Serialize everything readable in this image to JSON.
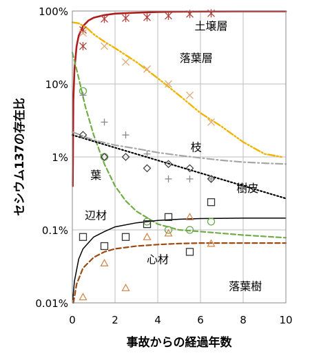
{
  "chart_data": {
    "type": "scatter",
    "title": "",
    "xlabel": "事故からの経過年数",
    "ylabel": "セシウム137の存在比",
    "x_ticks": [
      "0",
      "2",
      "4",
      "6",
      "8",
      "10"
    ],
    "y_ticks": [
      "0.01%",
      "0.1%",
      "1%",
      "10%",
      "100%"
    ],
    "xlim": [
      0,
      10
    ],
    "ylim_percent": [
      0.01,
      100
    ],
    "y_scale": "log",
    "grid": true,
    "annotations": [
      {
        "label": "土壌層",
        "x": 6.5,
        "y": 55
      },
      {
        "label": "落葉層",
        "x": 5.8,
        "y": 20
      },
      {
        "label": "枝",
        "x": 5.8,
        "y": 1.2
      },
      {
        "label": "葉",
        "x": 1.1,
        "y": 0.5
      },
      {
        "label": "樹皮",
        "x": 8.2,
        "y": 0.33
      },
      {
        "label": "辺材",
        "x": 1.1,
        "y": 0.14
      },
      {
        "label": "心材",
        "x": 4.0,
        "y": 0.035
      },
      {
        "label": "落葉樹",
        "x": 8.1,
        "y": 0.015
      }
    ],
    "series": [
      {
        "component": "soil",
        "marker": "asterisk",
        "color": "#b0403c",
        "line_style": "solid",
        "points": [
          [
            0.5,
            33
          ],
          [
            0.5,
            55
          ],
          [
            1.5,
            78
          ],
          [
            2.5,
            80
          ],
          [
            3.5,
            82
          ],
          [
            4.5,
            86
          ],
          [
            5.5,
            91
          ],
          [
            6.5,
            93
          ]
        ],
        "fit": [
          [
            0.02,
            0.4
          ],
          [
            0.05,
            6
          ],
          [
            0.1,
            16
          ],
          [
            0.2,
            33
          ],
          [
            0.3,
            46
          ],
          [
            0.5,
            62
          ],
          [
            0.75,
            74
          ],
          [
            1,
            81
          ],
          [
            1.5,
            88
          ],
          [
            2,
            92
          ],
          [
            3,
            95
          ],
          [
            4,
            97
          ],
          [
            5,
            98
          ],
          [
            6,
            98.5
          ],
          [
            8,
            99
          ],
          [
            10,
            99
          ]
        ]
      },
      {
        "component": "litter",
        "marker": "x",
        "color": "#e0a878",
        "line_style": "dash-dot-dot",
        "points": [
          [
            0.5,
            50
          ],
          [
            1.5,
            33
          ],
          [
            2.5,
            20
          ],
          [
            3.5,
            16
          ],
          [
            4.5,
            10
          ],
          [
            5.5,
            7
          ],
          [
            6.5,
            3
          ]
        ],
        "fit": [
          [
            0,
            70
          ],
          [
            0.3,
            68
          ],
          [
            0.7,
            58
          ],
          [
            1,
            48
          ],
          [
            1.5,
            38
          ],
          [
            2,
            31
          ],
          [
            3,
            20
          ],
          [
            4,
            12
          ],
          [
            5,
            7
          ],
          [
            6,
            4
          ],
          [
            7,
            2.6
          ],
          [
            8,
            1.6
          ],
          [
            9,
            1.1
          ],
          [
            9.8,
            1.0
          ]
        ]
      },
      {
        "component": "leaf",
        "marker": "circle",
        "color": "#6aa84f",
        "line_style": "dashed",
        "points": [
          [
            0.5,
            8
          ],
          [
            1.5,
            1.0
          ],
          [
            3.5,
            0.13
          ],
          [
            4.5,
            0.1
          ],
          [
            5.5,
            0.1
          ],
          [
            6.5,
            0.13
          ]
        ],
        "fit": [
          [
            0,
            27
          ],
          [
            0.3,
            12
          ],
          [
            0.6,
            5
          ],
          [
            1,
            2
          ],
          [
            1.5,
            0.8
          ],
          [
            2,
            0.4
          ],
          [
            2.5,
            0.25
          ],
          [
            3,
            0.18
          ],
          [
            4,
            0.12
          ],
          [
            5,
            0.1
          ],
          [
            6,
            0.095
          ],
          [
            8,
            0.085
          ],
          [
            10,
            0.078
          ]
        ]
      },
      {
        "component": "branch",
        "marker": "plus",
        "color": "#888888",
        "line_style": "dash-dot",
        "points": [
          [
            0.5,
            7
          ],
          [
            1.5,
            3
          ],
          [
            2.5,
            2
          ],
          [
            3.5,
            1.1
          ],
          [
            4.5,
            0.5
          ],
          [
            5.5,
            0.5
          ],
          [
            6.5,
            0.5
          ]
        ],
        "fit": [
          [
            0,
            2.2
          ],
          [
            1,
            1.7
          ],
          [
            2,
            1.45
          ],
          [
            3,
            1.3
          ],
          [
            4,
            1.15
          ],
          [
            5,
            1.05
          ],
          [
            6,
            0.97
          ],
          [
            7,
            0.9
          ],
          [
            8,
            0.85
          ],
          [
            9,
            0.82
          ],
          [
            10,
            0.8
          ]
        ]
      },
      {
        "component": "bark",
        "marker": "diamond",
        "color": "#444444",
        "line_style": "dotted",
        "points": [
          [
            0.5,
            2.0
          ],
          [
            1.5,
            1.0
          ],
          [
            2.5,
            1.0
          ],
          [
            3.5,
            0.7
          ],
          [
            4.5,
            0.8
          ],
          [
            5.5,
            0.7
          ],
          [
            6.5,
            0.5
          ]
        ],
        "fit": [
          [
            0,
            2.0
          ],
          [
            10,
            0.27
          ]
        ]
      },
      {
        "component": "sapwood",
        "marker": "square",
        "color": "#333333",
        "line_style": "solid",
        "points": [
          [
            0.5,
            0.08
          ],
          [
            1.5,
            0.06
          ],
          [
            2.5,
            0.08
          ],
          [
            3.5,
            0.12
          ],
          [
            4.5,
            0.15
          ],
          [
            5.5,
            0.05
          ],
          [
            6.5,
            0.24
          ]
        ],
        "fit": [
          [
            0.02,
            0.011
          ],
          [
            0.1,
            0.02
          ],
          [
            0.3,
            0.04
          ],
          [
            0.5,
            0.055
          ],
          [
            1,
            0.08
          ],
          [
            1.5,
            0.095
          ],
          [
            2,
            0.11
          ],
          [
            3,
            0.125
          ],
          [
            4,
            0.135
          ],
          [
            5,
            0.14
          ],
          [
            6,
            0.143
          ],
          [
            8,
            0.145
          ],
          [
            10,
            0.145
          ]
        ]
      },
      {
        "component": "heartwood",
        "marker": "triangle",
        "color": "#d48a50",
        "line_style": "dashed",
        "points": [
          [
            0.5,
            0.012
          ],
          [
            1.5,
            0.035
          ],
          [
            2.5,
            0.016
          ],
          [
            3.5,
            0.08
          ],
          [
            4.5,
            0.09
          ],
          [
            5.5,
            0.15
          ],
          [
            6.5,
            0.065
          ]
        ],
        "fit": [
          [
            0.05,
            0.01
          ],
          [
            0.2,
            0.018
          ],
          [
            0.5,
            0.03
          ],
          [
            1,
            0.042
          ],
          [
            1.5,
            0.05
          ],
          [
            2,
            0.055
          ],
          [
            3,
            0.06
          ],
          [
            4,
            0.063
          ],
          [
            5,
            0.065
          ],
          [
            6,
            0.066
          ],
          [
            8,
            0.066
          ],
          [
            10,
            0.066
          ]
        ]
      }
    ]
  }
}
